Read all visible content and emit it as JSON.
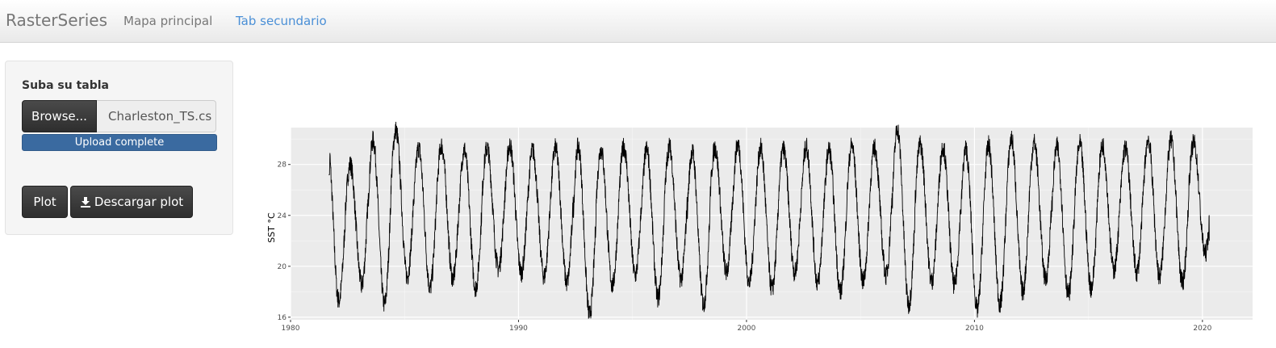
{
  "navbar": {
    "brand": "RasterSeries",
    "tabs": [
      {
        "label": "Mapa principal",
        "active": false
      },
      {
        "label": "Tab secundario",
        "active": true
      }
    ]
  },
  "sidebar": {
    "upload_label": "Suba su tabla",
    "browse_label": "Browse...",
    "file_name": "Charleston_TS.cs",
    "progress_text": "Upload complete",
    "progress_value": 1.0,
    "plot_label": "Plot",
    "download_label": "Descargar plot",
    "download_icon": "download-icon"
  },
  "colors": {
    "accent": "#4a8fd6",
    "progress": "#3a6aa0",
    "button_dark": "#383838",
    "plot_background": "#ebebeb",
    "line": "#000000"
  },
  "chart_data": {
    "type": "line",
    "title": "",
    "xlabel": "",
    "ylabel": "SST °C",
    "xlim": [
      1980,
      2022.2
    ],
    "ylim": [
      15.8,
      30.9
    ],
    "x_ticks": [
      1980,
      1990,
      2000,
      2010,
      2020
    ],
    "y_ticks": [
      16,
      20,
      24,
      28
    ],
    "x_tick_labels": [
      "1980",
      "1990",
      "2000",
      "2010",
      "2020"
    ],
    "y_tick_labels": [
      "16",
      "20",
      "24",
      "28"
    ],
    "grid": true,
    "legend": "none",
    "series": [
      {
        "x_start": 1981.67,
        "x_end": 2020.3,
        "seasonal_peaks": [
          {
            "year": 1982,
            "max": 28.0,
            "min": 17.3
          },
          {
            "year": 1983,
            "max": 29.9,
            "min": 18.5
          },
          {
            "year": 1984,
            "max": 30.7,
            "min": 17.0
          },
          {
            "year": 1985,
            "max": 29.3,
            "min": 19.2
          },
          {
            "year": 1986,
            "max": 29.5,
            "min": 18.3
          },
          {
            "year": 1987,
            "max": 29.2,
            "min": 19.0
          },
          {
            "year": 1988,
            "max": 29.3,
            "min": 18.3
          },
          {
            "year": 1989,
            "max": 29.5,
            "min": 19.8
          },
          {
            "year": 1990,
            "max": 29.1,
            "min": 19.5
          },
          {
            "year": 1991,
            "max": 29.3,
            "min": 19.2
          },
          {
            "year": 1992,
            "max": 29.4,
            "min": 18.7
          },
          {
            "year": 1993,
            "max": 29.2,
            "min": 16.2
          },
          {
            "year": 1994,
            "max": 29.4,
            "min": 18.5
          },
          {
            "year": 1995,
            "max": 29.2,
            "min": 19.3
          },
          {
            "year": 1996,
            "max": 29.4,
            "min": 17.5
          },
          {
            "year": 1997,
            "max": 29.0,
            "min": 19.0
          },
          {
            "year": 1998,
            "max": 29.3,
            "min": 17.0
          },
          {
            "year": 1999,
            "max": 29.6,
            "min": 19.5
          },
          {
            "year": 2000,
            "max": 29.3,
            "min": 18.7
          },
          {
            "year": 2001,
            "max": 29.2,
            "min": 18.2
          },
          {
            "year": 2002,
            "max": 29.4,
            "min": 19.5
          },
          {
            "year": 2003,
            "max": 29.2,
            "min": 18.7
          },
          {
            "year": 2004,
            "max": 29.5,
            "min": 18.0
          },
          {
            "year": 2005,
            "max": 29.3,
            "min": 18.8
          },
          {
            "year": 2006,
            "max": 30.8,
            "min": 19.3
          },
          {
            "year": 2007,
            "max": 29.6,
            "min": 17.0
          },
          {
            "year": 2008,
            "max": 29.4,
            "min": 18.8
          },
          {
            "year": 2009,
            "max": 29.2,
            "min": 18.5
          },
          {
            "year": 2010,
            "max": 29.5,
            "min": 16.6
          },
          {
            "year": 2011,
            "max": 30.0,
            "min": 17.0
          },
          {
            "year": 2012,
            "max": 29.7,
            "min": 18.0
          },
          {
            "year": 2013,
            "max": 29.4,
            "min": 19.0
          },
          {
            "year": 2014,
            "max": 29.6,
            "min": 17.8
          },
          {
            "year": 2015,
            "max": 29.5,
            "min": 18.3
          },
          {
            "year": 2016,
            "max": 29.3,
            "min": 19.7
          },
          {
            "year": 2017,
            "max": 30.0,
            "min": 19.5
          },
          {
            "year": 2018,
            "max": 29.9,
            "min": 19.2
          },
          {
            "year": 2019,
            "max": 29.7,
            "min": 18.7
          },
          {
            "year": 2020,
            "max": 29.9,
            "min": 21.0
          }
        ],
        "first_value": 27.2,
        "last_value": 22.0
      }
    ]
  }
}
